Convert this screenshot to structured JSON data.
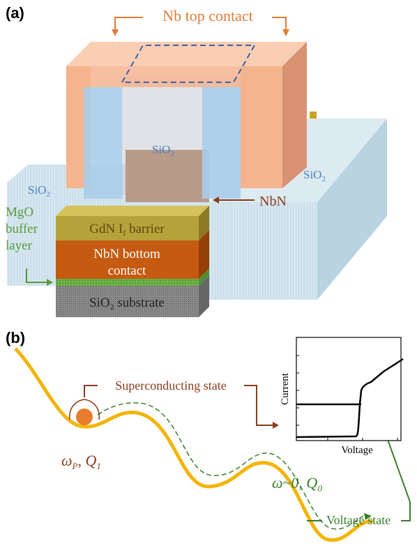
{
  "panel_a": {
    "label": "(a)",
    "top_contact": "Nb top contact",
    "sio2_left": {
      "text": "SiO",
      "sub": "2"
    },
    "sio2_center": {
      "text": "SiO",
      "sub": "2"
    },
    "sio2_right": {
      "text": "SiO",
      "sub": "2"
    },
    "nbn": "NbN",
    "mgo": [
      "MgO",
      "buffer",
      "layer"
    ],
    "barrier": {
      "text": "GdN I",
      "sub": "f",
      "rest": " barrier"
    },
    "bottom_contact": [
      "NbN bottom",
      "contact"
    ],
    "substrate": {
      "text": "SiO",
      "sub": "2",
      "rest": " substrate"
    }
  },
  "panel_b": {
    "label": "(b)",
    "superconducting": "Superconducting state",
    "y_axis": "Current",
    "x_axis": "Voltage",
    "phase_params": {
      "text": "ω",
      "sub": "P",
      "text2": ", Q",
      "sub2": "1"
    },
    "running_params": {
      "text": "ω~0, Q",
      "sub": "0"
    },
    "voltage_state": "Voltage state"
  }
}
